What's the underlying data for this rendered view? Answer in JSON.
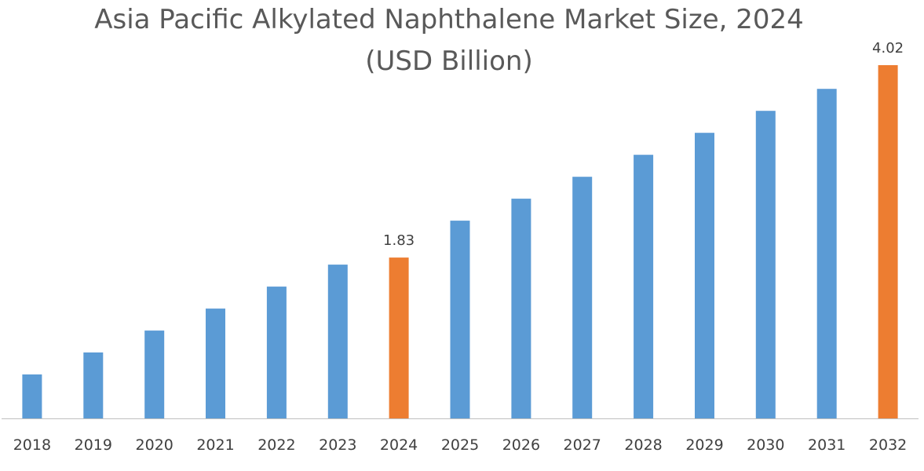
{
  "chart_data": {
    "type": "bar",
    "title_lines": [
      "Asia Pacific Alkylated Naphthalene Market Size, 2024",
      "(USD Billion)"
    ],
    "xlabel": "",
    "ylabel": "",
    "ylim": [
      0,
      4.02
    ],
    "grid": false,
    "legend": "none",
    "categories": [
      "2018",
      "2019",
      "2020",
      "2021",
      "2022",
      "2023",
      "2024",
      "2025",
      "2026",
      "2027",
      "2028",
      "2029",
      "2030",
      "2031",
      "2032"
    ],
    "values": [
      0.5,
      0.75,
      1.0,
      1.25,
      1.5,
      1.75,
      1.83,
      2.25,
      2.5,
      2.75,
      3.0,
      3.25,
      3.5,
      3.75,
      4.02
    ],
    "highlight_categories": [
      "2024",
      "2032"
    ],
    "data_labels": [
      {
        "category": "2024",
        "text": "1.83"
      },
      {
        "category": "2032",
        "text": "4.02"
      }
    ],
    "colors": {
      "bar": "#5b9bd5",
      "highlight": "#ed7d31",
      "axis": "#bfbfbf"
    }
  }
}
